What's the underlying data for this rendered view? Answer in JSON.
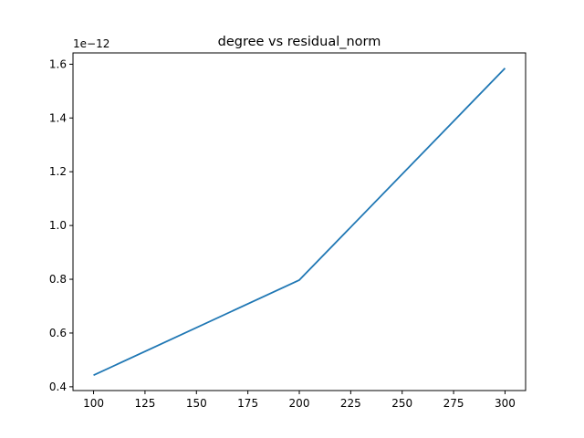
{
  "chart_data": {
    "type": "line",
    "title": "degree vs residual_norm",
    "xlabel": "",
    "ylabel": "",
    "y_offset_label": "1e−12",
    "x": [
      100,
      200,
      300
    ],
    "series": [
      {
        "values": [
          0.443,
          0.797,
          1.585
        ],
        "color": "#1f77b4"
      }
    ],
    "xlim": [
      90,
      310
    ],
    "ylim": [
      0.386,
      1.642
    ],
    "x_ticks": [
      100,
      125,
      150,
      175,
      200,
      225,
      250,
      275,
      300
    ],
    "x_tick_labels": [
      "100",
      "125",
      "150",
      "175",
      "200",
      "225",
      "250",
      "275",
      "300"
    ],
    "y_ticks": [
      0.4,
      0.6,
      0.8,
      1.0,
      1.2,
      1.4,
      1.6
    ],
    "y_tick_labels": [
      "0.4",
      "0.6",
      "0.8",
      "1.0",
      "1.2",
      "1.4",
      "1.6"
    ],
    "grid": false,
    "legend": "none"
  }
}
